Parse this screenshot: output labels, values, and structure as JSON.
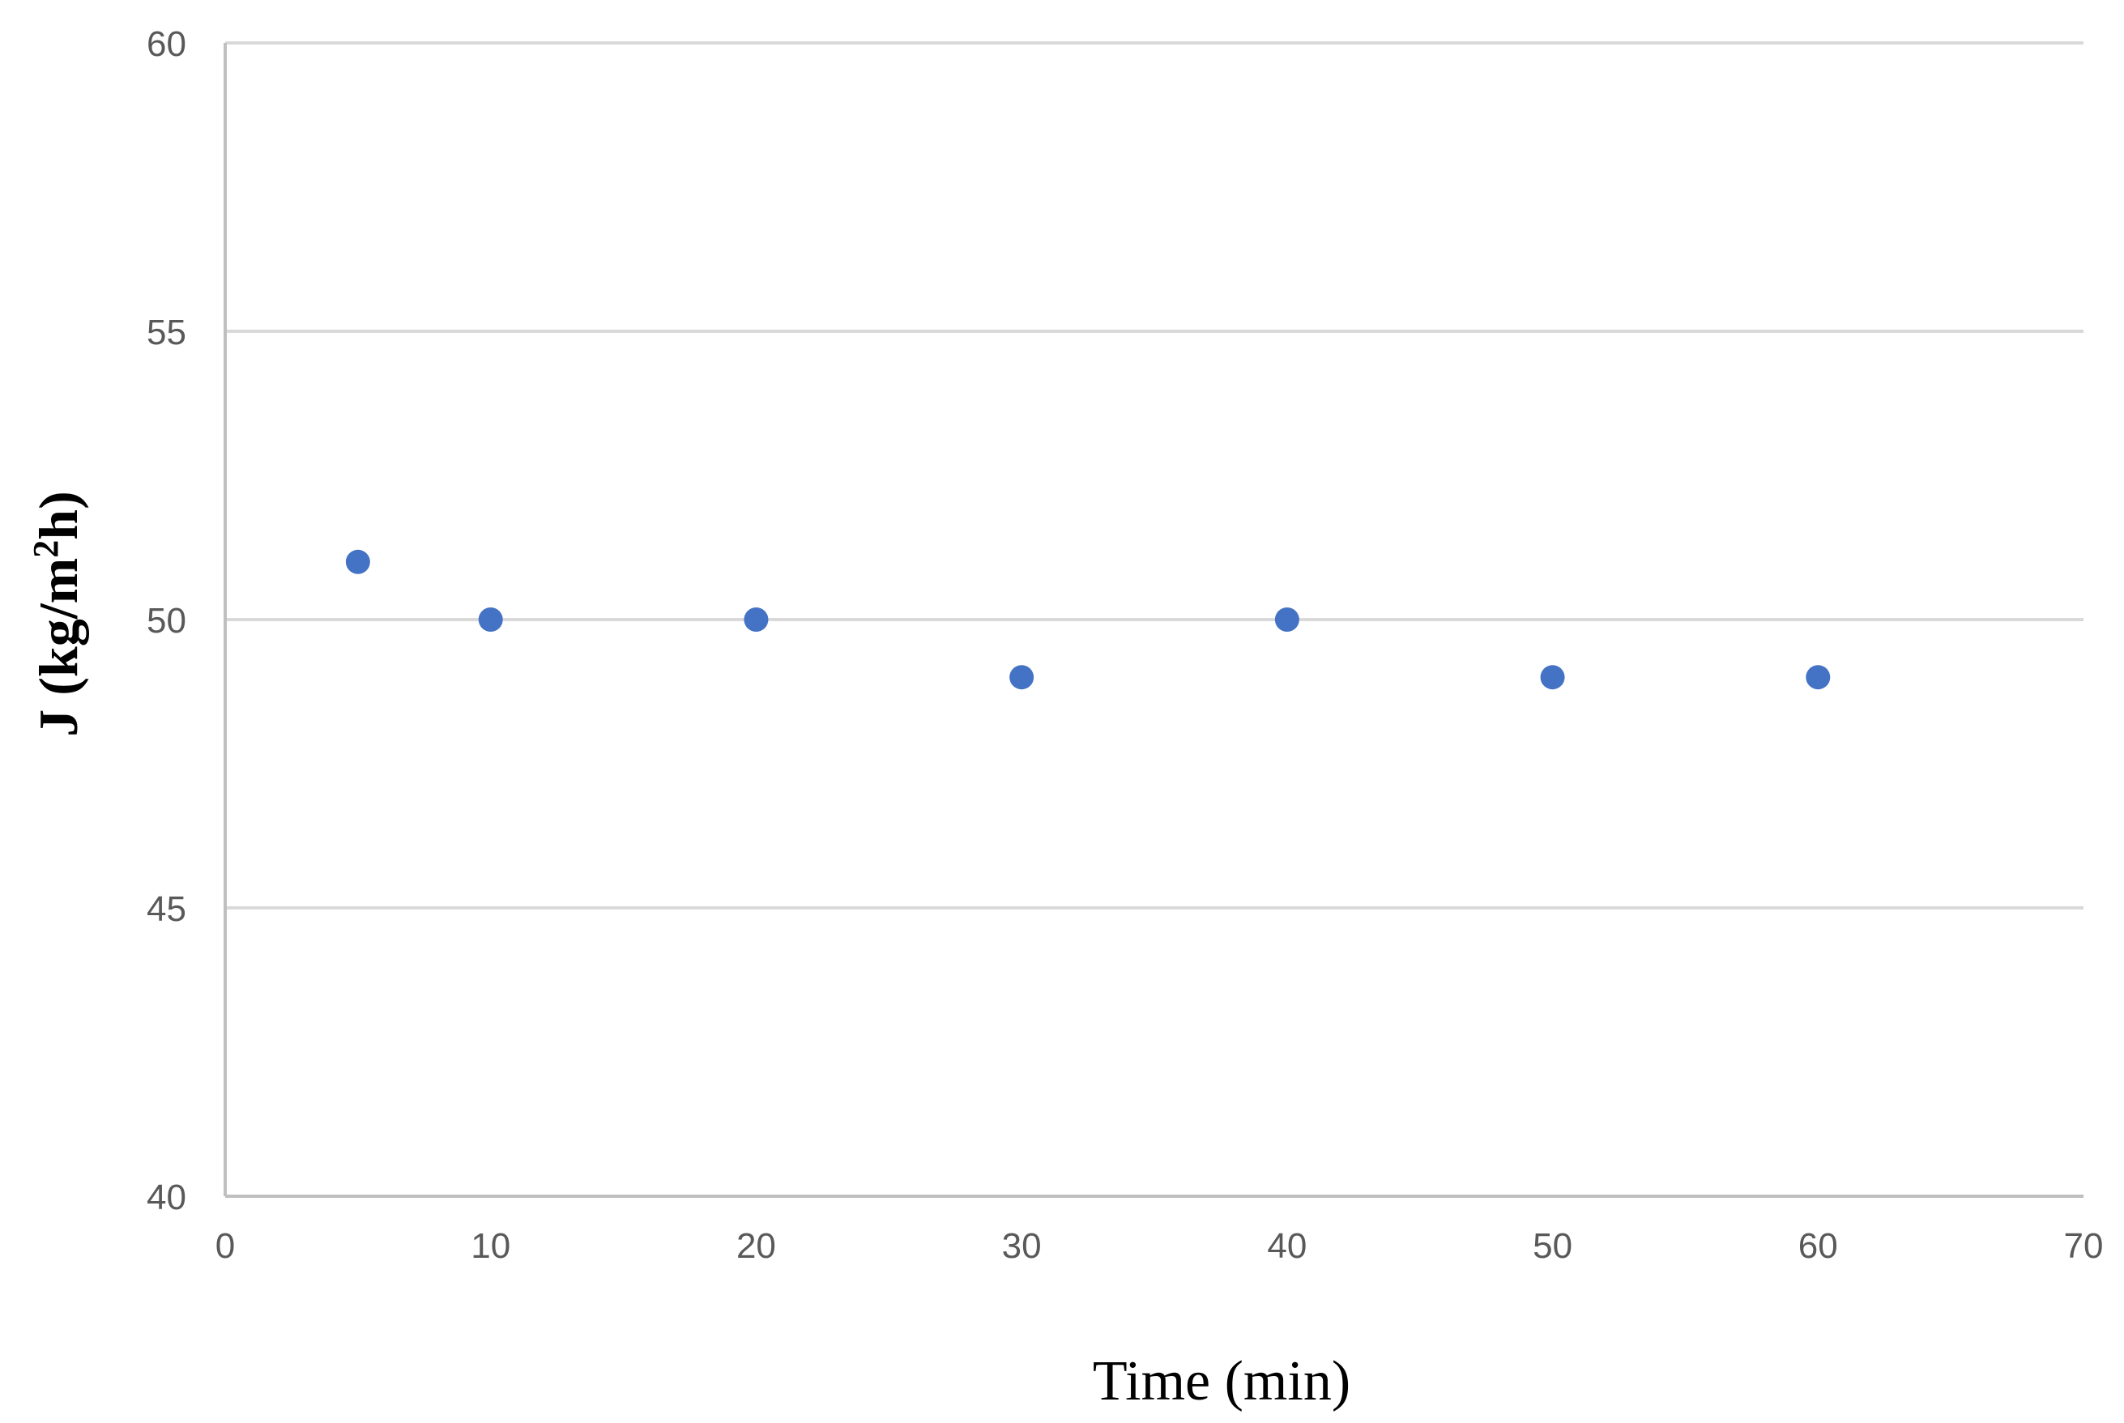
{
  "chart_data": {
    "type": "scatter",
    "xlabel": "Time (min)",
    "ylabel": {
      "prefix": "J (kg/m",
      "superscript": "2",
      "suffix": "h)"
    },
    "xlim": [
      0,
      70
    ],
    "ylim": [
      40,
      60
    ],
    "xticks": [
      0,
      10,
      20,
      30,
      40,
      50,
      60,
      70
    ],
    "yticks": [
      40,
      45,
      50,
      55,
      60
    ],
    "grid": {
      "horizontal": true,
      "vertical": false
    },
    "series": [
      {
        "x": [
          5,
          10,
          20,
          30,
          40,
          50,
          60
        ],
        "y": [
          51,
          50,
          50,
          49,
          50,
          49,
          49
        ]
      }
    ],
    "colors": {
      "marker": "#4472C4",
      "grid": "#D9D9D9",
      "axis": "#BFBFBF",
      "tick_text": "#595959"
    }
  }
}
